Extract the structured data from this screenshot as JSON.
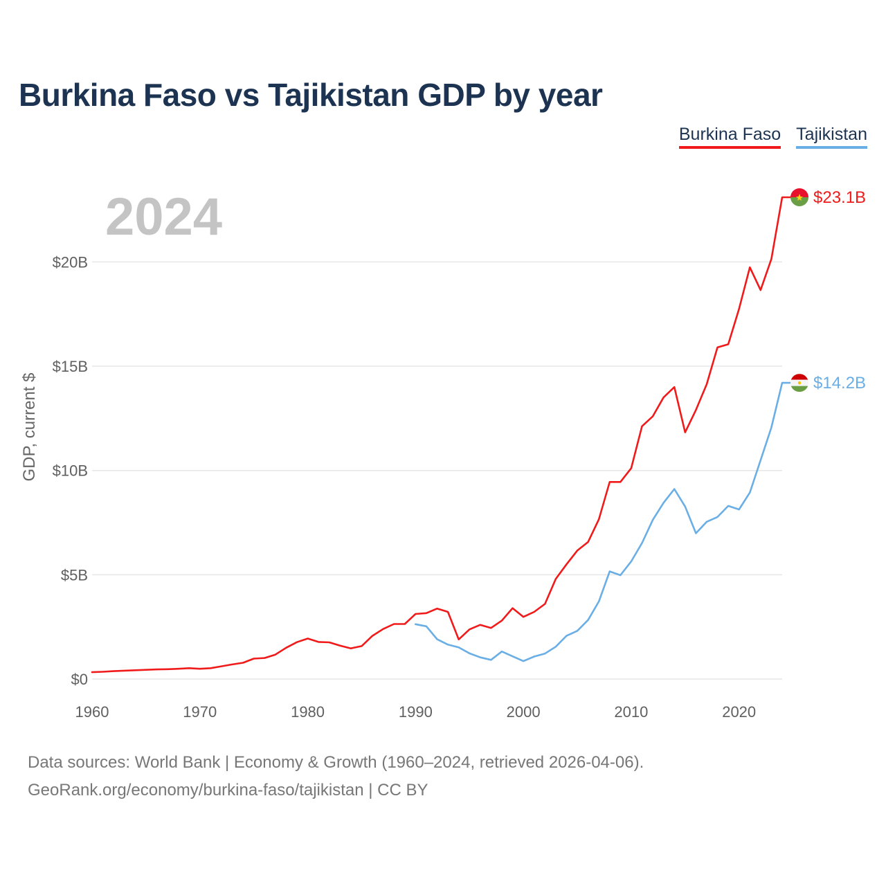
{
  "title": "Burkina Faso vs Tajikistan GDP by year",
  "year_display": "2024",
  "legend": [
    {
      "label": "Burkina Faso",
      "color": "#f01a1a"
    },
    {
      "label": "Tajikistan",
      "color": "#6aaee6"
    }
  ],
  "source": {
    "line1": "Data sources: World Bank | Economy & Growth (1960–2024, retrieved 2026-04-06).",
    "line2": "GeoRank.org/economy/burkina-faso/tajikistan | CC BY"
  },
  "chart_data": {
    "type": "line",
    "title": "Burkina Faso vs Tajikistan GDP by year",
    "xlabel": "",
    "ylabel": "GDP, current $",
    "xlim": [
      1960,
      2024
    ],
    "ylim": [
      0,
      23
    ],
    "unit": "billion US$",
    "xticks": [
      1960,
      1970,
      1980,
      1990,
      2000,
      2010,
      2020
    ],
    "xtick_labels": [
      "1960",
      "1970",
      "1980",
      "1990",
      "2000",
      "2010",
      "2020"
    ],
    "yticks": [
      0,
      5,
      10,
      15,
      20
    ],
    "ytick_labels": [
      "$0",
      "$5B",
      "$10B",
      "$15B",
      "$20B"
    ],
    "grid": true,
    "legend_position": "top-right",
    "series": [
      {
        "name": "Burkina Faso",
        "color": "#f01a1a",
        "end_label": "$23.1B",
        "x": [
          1960,
          1961,
          1962,
          1963,
          1964,
          1965,
          1966,
          1967,
          1968,
          1969,
          1970,
          1971,
          1972,
          1973,
          1974,
          1975,
          1976,
          1977,
          1978,
          1979,
          1980,
          1981,
          1982,
          1983,
          1984,
          1985,
          1986,
          1987,
          1988,
          1989,
          1990,
          1991,
          1992,
          1993,
          1994,
          1995,
          1996,
          1997,
          1998,
          1999,
          2000,
          2001,
          2002,
          2003,
          2004,
          2005,
          2006,
          2007,
          2008,
          2009,
          2010,
          2011,
          2012,
          2013,
          2014,
          2015,
          2016,
          2017,
          2018,
          2019,
          2020,
          2021,
          2022,
          2023,
          2024
        ],
        "values": [
          0.33,
          0.35,
          0.38,
          0.4,
          0.42,
          0.44,
          0.46,
          0.47,
          0.49,
          0.52,
          0.49,
          0.52,
          0.61,
          0.7,
          0.78,
          0.98,
          1.01,
          1.17,
          1.5,
          1.77,
          1.94,
          1.78,
          1.76,
          1.6,
          1.47,
          1.58,
          2.07,
          2.4,
          2.64,
          2.64,
          3.12,
          3.16,
          3.38,
          3.22,
          1.9,
          2.38,
          2.6,
          2.45,
          2.8,
          3.4,
          2.98,
          3.22,
          3.6,
          4.8,
          5.5,
          6.16,
          6.57,
          7.66,
          9.45,
          9.45,
          10.11,
          12.12,
          12.6,
          13.5,
          14.0,
          11.83,
          12.9,
          14.14,
          15.9,
          16.05,
          17.75,
          19.74,
          18.65,
          20.14,
          23.1
        ]
      },
      {
        "name": "Tajikistan",
        "color": "#6aaee6",
        "end_label": "$14.2B",
        "x": [
          1990,
          1991,
          1992,
          1993,
          1994,
          1995,
          1996,
          1997,
          1998,
          1999,
          2000,
          2001,
          2002,
          2003,
          2004,
          2005,
          2006,
          2007,
          2008,
          2009,
          2010,
          2011,
          2012,
          2013,
          2014,
          2015,
          2016,
          2017,
          2018,
          2019,
          2020,
          2021,
          2022,
          2023,
          2024
        ],
        "values": [
          2.63,
          2.53,
          1.91,
          1.65,
          1.52,
          1.23,
          1.04,
          0.92,
          1.32,
          1.09,
          0.86,
          1.08,
          1.22,
          1.55,
          2.07,
          2.31,
          2.83,
          3.72,
          5.16,
          4.98,
          5.64,
          6.52,
          7.63,
          8.45,
          9.11,
          8.27,
          6.99,
          7.54,
          7.77,
          8.3,
          8.13,
          8.94,
          10.49,
          12.06,
          14.2
        ]
      }
    ]
  }
}
